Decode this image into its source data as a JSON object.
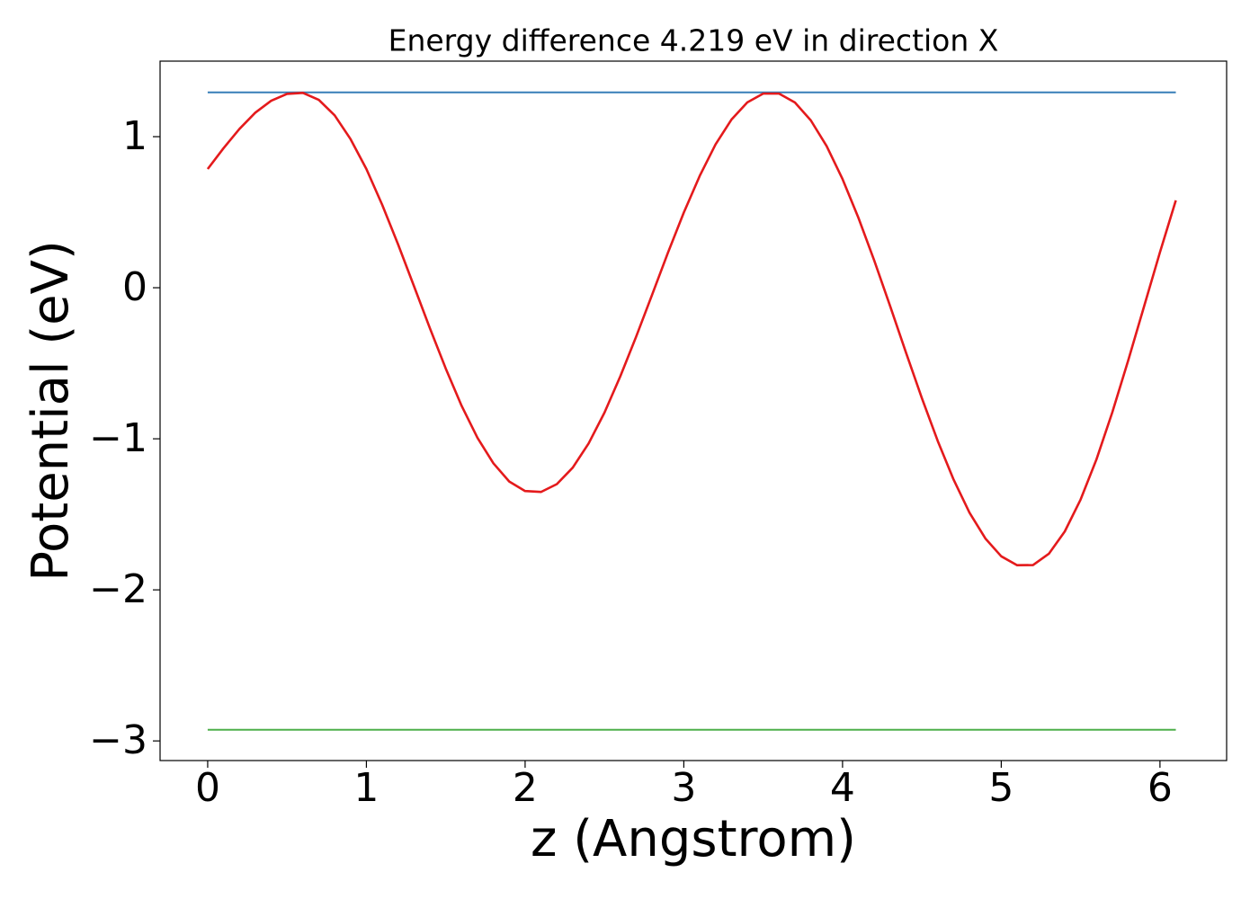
{
  "chart_data": {
    "type": "line",
    "title": "Energy difference 4.219 eV in direction X",
    "x_label": "z (Angstrom)",
    "y_label": "Potential (eV)",
    "xlim": [
      -0.3,
      6.42
    ],
    "ylim": [
      -3.13,
      1.5
    ],
    "xticks": [
      0,
      1,
      2,
      3,
      4,
      5,
      6
    ],
    "yticks": [
      {
        "value": -3,
        "label": "−3"
      },
      {
        "value": -2,
        "label": "−2"
      },
      {
        "value": -1,
        "label": "−1"
      },
      0,
      1
    ],
    "grid": false,
    "x": [
      0,
      0.1,
      0.2,
      0.3,
      0.4,
      0.5,
      0.6,
      0.7,
      0.8,
      0.9,
      1.0,
      1.1,
      1.2,
      1.3,
      1.4,
      1.5,
      1.6,
      1.7,
      1.8,
      1.9,
      2.0,
      2.1,
      2.2,
      2.3,
      2.4,
      2.5,
      2.6,
      2.7,
      2.8,
      2.9,
      3.0,
      3.1,
      3.2,
      3.3,
      3.4,
      3.5,
      3.6,
      3.7,
      3.8,
      3.9,
      4.0,
      4.1,
      4.2,
      4.3,
      4.4,
      4.5,
      4.6,
      4.7,
      4.8,
      4.9,
      5.0,
      5.1,
      5.2,
      5.3,
      5.4,
      5.5,
      5.6,
      5.7,
      5.8,
      5.9,
      6.0,
      6.1
    ],
    "series": [
      {
        "color": "#e41a1c",
        "values": [
          0.786,
          0.924,
          1.051,
          1.159,
          1.238,
          1.283,
          1.29,
          1.244,
          1.141,
          0.984,
          0.786,
          0.548,
          0.286,
          0.01,
          -0.268,
          -0.535,
          -0.782,
          -0.994,
          -1.162,
          -1.283,
          -1.346,
          -1.352,
          -1.3,
          -1.191,
          -1.031,
          -0.827,
          -0.586,
          -0.323,
          -0.047,
          0.232,
          0.498,
          0.74,
          0.949,
          1.113,
          1.227,
          1.285,
          1.285,
          1.226,
          1.108,
          0.937,
          0.719,
          0.463,
          0.179,
          -0.122,
          -0.43,
          -0.731,
          -1.015,
          -1.271,
          -1.489,
          -1.66,
          -1.778,
          -1.837,
          -1.836,
          -1.761,
          -1.614,
          -1.402,
          -1.136,
          -0.824,
          -0.481,
          -0.123,
          0.235,
          0.578
        ]
      }
    ],
    "hlines": [
      {
        "value": 1.293,
        "xmin": 0,
        "xmax": 6.1,
        "color": "#377eb8"
      },
      {
        "value": -2.926,
        "xmin": 0,
        "xmax": 6.1,
        "color": "#4daf4a"
      }
    ]
  }
}
